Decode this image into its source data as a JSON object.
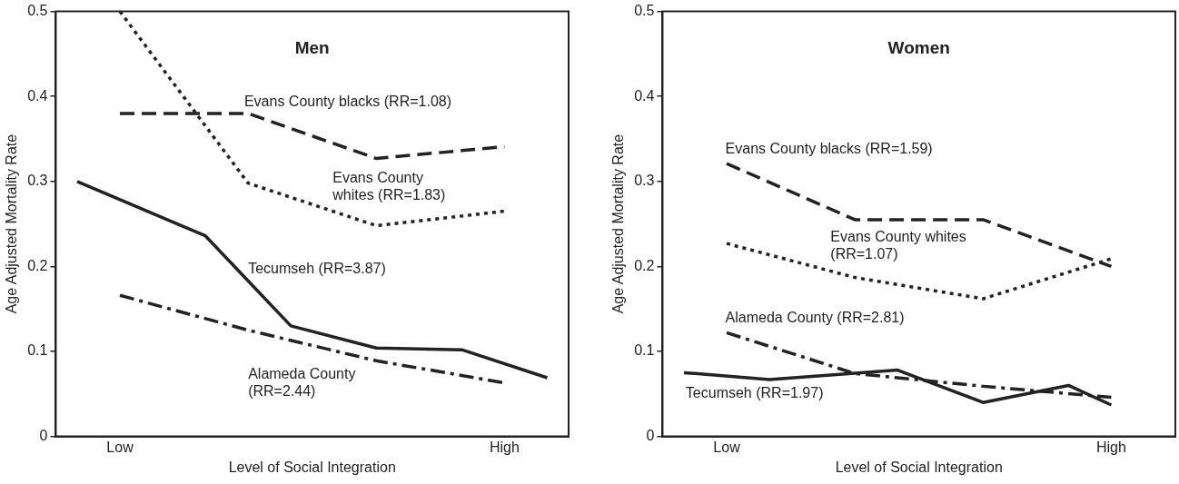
{
  "chart_data": [
    {
      "type": "line",
      "title": "Men",
      "xlabel": "Level of Social Integration",
      "ylabel": "Age Adjusted Mortality Rate",
      "categories": [
        null,
        "Low",
        null,
        null,
        null,
        null,
        null,
        null,
        null,
        null,
        "High",
        null
      ],
      "ylim": [
        0,
        0.5
      ],
      "yticks": [
        0,
        0.1,
        0.2,
        0.3,
        0.4,
        0.5
      ],
      "grid": false,
      "legend": false,
      "marker": "none",
      "series": [
        {
          "name": "Evans County blacks (RR=1.08)",
          "color": "#222222",
          "line_style": "dashed",
          "values": [
            null,
            0.38,
            null,
            null,
            0.38,
            null,
            null,
            0.327,
            null,
            null,
            0.341,
            null
          ]
        },
        {
          "name": "Evans County\nwhites (RR=1.83)",
          "color": "#222222",
          "line_style": "dotted",
          "values": [
            null,
            0.5,
            null,
            null,
            0.298,
            null,
            null,
            0.248,
            null,
            null,
            0.265,
            null
          ]
        },
        {
          "name": "Tecumseh (RR=3.87)",
          "color": "#222222",
          "line_style": "solid",
          "values": [
            0.3,
            null,
            null,
            0.236,
            null,
            0.13,
            null,
            0.104,
            null,
            0.102,
            null,
            0.069
          ]
        },
        {
          "name": "Alameda County\n(RR=2.44)",
          "color": "#222222",
          "line_style": "dashdot",
          "values": [
            null,
            0.166,
            null,
            null,
            0.125,
            null,
            null,
            0.089,
            null,
            null,
            0.063,
            null
          ]
        }
      ]
    },
    {
      "type": "line",
      "title": "Women",
      "xlabel": "Level of Social Integration",
      "ylabel": "Age Adjusted Mortality Rate",
      "categories": [
        null,
        "Low",
        null,
        null,
        null,
        null,
        null,
        null,
        null,
        null,
        "High",
        null
      ],
      "ylim": [
        0,
        0.5
      ],
      "yticks": [
        0,
        0.1,
        0.2,
        0.3,
        0.4,
        0.5
      ],
      "grid": false,
      "legend": false,
      "marker": "none",
      "series": [
        {
          "name": "Evans County blacks (RR=1.59)",
          "color": "#222222",
          "line_style": "dashed",
          "values": [
            null,
            0.321,
            null,
            null,
            0.255,
            null,
            null,
            0.255,
            null,
            null,
            0.2,
            null
          ]
        },
        {
          "name": "Evans County whites\n(RR=1.07)",
          "color": "#222222",
          "line_style": "dotted",
          "values": [
            null,
            0.227,
            null,
            null,
            0.187,
            null,
            null,
            0.162,
            null,
            null,
            0.209,
            null
          ]
        },
        {
          "name": "Tecumseh (RR=1.97)",
          "color": "#222222",
          "line_style": "solid",
          "values": [
            0.075,
            null,
            0.067,
            null,
            null,
            0.078,
            null,
            0.04,
            null,
            0.06,
            0.037,
            null
          ]
        },
        {
          "name": "Alameda County (RR=2.81)",
          "color": "#222222",
          "line_style": "dashdot",
          "values": [
            null,
            0.122,
            null,
            null,
            0.074,
            null,
            null,
            0.059,
            null,
            null,
            0.046,
            null
          ]
        }
      ]
    }
  ]
}
